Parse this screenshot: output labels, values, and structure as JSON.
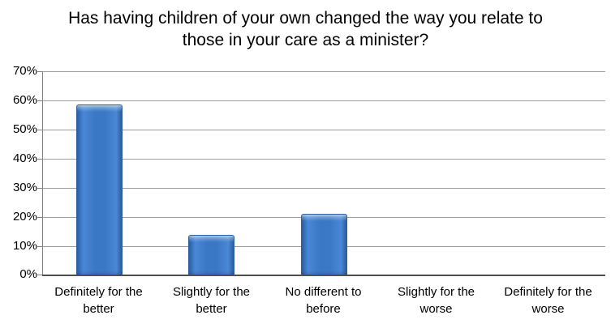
{
  "chart_data": {
    "type": "bar",
    "title": "Has having children of your own changed the way you relate to those in your care as a minister?",
    "categories": [
      "Definitely for the better",
      "Slightly for the better",
      "No different to before",
      "Slightly for the worse",
      "Definitely for the worse"
    ],
    "values": [
      58.6,
      14,
      21,
      0,
      0
    ],
    "unit": "%",
    "xlabel": "",
    "ylabel": "",
    "ylim": [
      0,
      70
    ],
    "ytick_step": 10,
    "ytick_labels": [
      "0%",
      "10%",
      "20%",
      "30%",
      "40%",
      "50%",
      "60%",
      "70%"
    ],
    "grid": true,
    "legend": "none",
    "colors": {
      "bar_face": "#3A77C4",
      "bar_face_light": "#4A87D6",
      "bar_edge": "#2B5D9E",
      "bar_outline": "#2E5E9F",
      "gridline": "#9C9C9C",
      "axis_line": "#4F4F4F",
      "tick": "#808080",
      "text": "#000000",
      "background": "#FFFFFF"
    }
  }
}
